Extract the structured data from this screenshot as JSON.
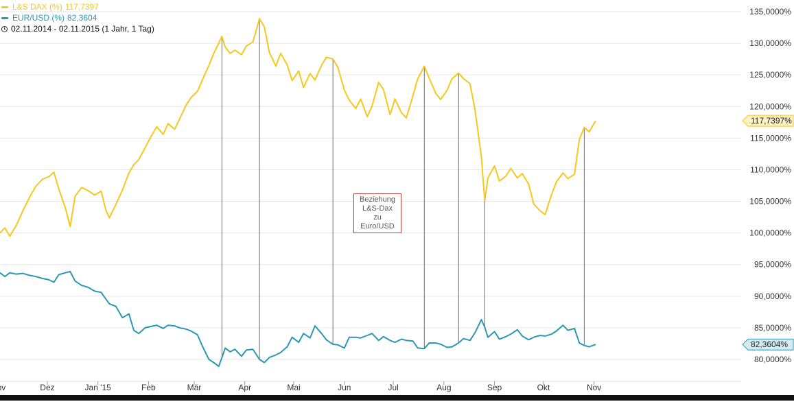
{
  "legend": {
    "series1_name": "L&S DAX (%)",
    "series1_value": "117,7397",
    "series2_name": "EUR/USD (%)",
    "series2_value": "82,3604",
    "period": "02.11.2014 - 02.11.2015 (1 Jahr, 1 Tag)"
  },
  "annotation": {
    "lines": [
      "Beziehung",
      "L&S-Dax",
      "zu",
      "Euro/USD"
    ]
  },
  "colors": {
    "dax": "#f5c81a",
    "eurusd": "#2a97b3",
    "grid": "#e6e6e6",
    "vline": "#6a6a6a",
    "annotation_border": "#c23b3b"
  },
  "chart_data": {
    "type": "line",
    "title": "",
    "xlabel": "",
    "ylabel": "",
    "x_range": [
      "2014-11-02",
      "2015-11-02"
    ],
    "ylim": [
      78,
      136
    ],
    "grid": true,
    "y_axis_position": "right",
    "y_ticks": [
      "135,0000%",
      "130,0000%",
      "125,0000%",
      "120,0000%",
      "115,0000%",
      "110,0000%",
      "105,0000%",
      "100,0000%",
      "95,0000%",
      "90,0000%",
      "85,0000%",
      "80,0000%"
    ],
    "y_tick_values": [
      135,
      130,
      125,
      120,
      115,
      110,
      105,
      100,
      95,
      90,
      85,
      80
    ],
    "x_ticks": [
      {
        "label": "Nov",
        "date": "2014-11-01"
      },
      {
        "label": "Dez",
        "date": "2014-12-01"
      },
      {
        "label": "Jan '15",
        "date": "2015-01-01"
      },
      {
        "label": "Feb",
        "date": "2015-02-01"
      },
      {
        "label": "Mär",
        "date": "2015-03-01"
      },
      {
        "label": "Apr",
        "date": "2015-04-01"
      },
      {
        "label": "Mai",
        "date": "2015-05-01"
      },
      {
        "label": "Jun",
        "date": "2015-06-01"
      },
      {
        "label": "Jul",
        "date": "2015-07-01"
      },
      {
        "label": "Aug",
        "date": "2015-08-01"
      },
      {
        "label": "Sep",
        "date": "2015-09-01"
      },
      {
        "label": "Okt",
        "date": "2015-10-01"
      },
      {
        "label": "Nov",
        "date": "2015-11-01"
      }
    ],
    "last_value_labels": [
      {
        "series": "L&S DAX (%)",
        "text": "117,7397%",
        "value": 117.74
      },
      {
        "series": "EUR/USD (%)",
        "text": "82,3604%",
        "value": 82.36
      }
    ],
    "series": [
      {
        "name": "L&S DAX (%)",
        "points": [
          [
            "2014-11-02",
            100.0
          ],
          [
            "2014-11-05",
            100.8
          ],
          [
            "2014-11-08",
            99.5
          ],
          [
            "2014-11-12",
            101.2
          ],
          [
            "2014-11-16",
            103.5
          ],
          [
            "2014-11-20",
            105.6
          ],
          [
            "2014-11-24",
            107.4
          ],
          [
            "2014-11-28",
            108.5
          ],
          [
            "2014-12-02",
            108.9
          ],
          [
            "2014-12-05",
            109.6
          ],
          [
            "2014-12-08",
            107.0
          ],
          [
            "2014-12-12",
            104.0
          ],
          [
            "2014-12-15",
            101.0
          ],
          [
            "2014-12-18",
            105.8
          ],
          [
            "2014-12-22",
            107.2
          ],
          [
            "2014-12-26",
            106.7
          ],
          [
            "2014-12-30",
            106.0
          ],
          [
            "2015-01-03",
            106.6
          ],
          [
            "2015-01-06",
            103.5
          ],
          [
            "2015-01-08",
            102.4
          ],
          [
            "2015-01-12",
            104.5
          ],
          [
            "2015-01-16",
            106.8
          ],
          [
            "2015-01-20",
            109.5
          ],
          [
            "2015-01-23",
            110.8
          ],
          [
            "2015-01-26",
            111.6
          ],
          [
            "2015-01-30",
            113.5
          ],
          [
            "2015-02-02",
            115.0
          ],
          [
            "2015-02-06",
            116.8
          ],
          [
            "2015-02-10",
            115.6
          ],
          [
            "2015-02-13",
            117.3
          ],
          [
            "2015-02-17",
            116.4
          ],
          [
            "2015-02-20",
            118.0
          ],
          [
            "2015-02-24",
            120.2
          ],
          [
            "2015-02-27",
            121.4
          ],
          [
            "2015-03-03",
            122.4
          ],
          [
            "2015-03-06",
            124.2
          ],
          [
            "2015-03-10",
            126.5
          ],
          [
            "2015-03-13",
            128.4
          ],
          [
            "2015-03-16",
            130.0
          ],
          [
            "2015-03-18",
            131.1
          ],
          [
            "2015-03-20",
            129.4
          ],
          [
            "2015-03-23",
            128.4
          ],
          [
            "2015-03-26",
            128.9
          ],
          [
            "2015-03-30",
            128.2
          ],
          [
            "2015-04-02",
            129.6
          ],
          [
            "2015-04-06",
            130.2
          ],
          [
            "2015-04-10",
            133.9
          ],
          [
            "2015-04-13",
            132.6
          ],
          [
            "2015-04-16",
            128.6
          ],
          [
            "2015-04-20",
            126.4
          ],
          [
            "2015-04-23",
            128.4
          ],
          [
            "2015-04-27",
            126.6
          ],
          [
            "2015-04-30",
            124.1
          ],
          [
            "2015-05-04",
            125.6
          ],
          [
            "2015-05-07",
            123.0
          ],
          [
            "2015-05-11",
            125.2
          ],
          [
            "2015-05-14",
            124.2
          ],
          [
            "2015-05-18",
            126.5
          ],
          [
            "2015-05-21",
            127.8
          ],
          [
            "2015-05-25",
            127.5
          ],
          [
            "2015-05-28",
            126.2
          ],
          [
            "2015-06-01",
            122.6
          ],
          [
            "2015-06-04",
            121.0
          ],
          [
            "2015-06-08",
            119.7
          ],
          [
            "2015-06-11",
            121.2
          ],
          [
            "2015-06-15",
            118.4
          ],
          [
            "2015-06-18",
            120.1
          ],
          [
            "2015-06-22",
            123.8
          ],
          [
            "2015-06-25",
            122.7
          ],
          [
            "2015-06-29",
            118.7
          ],
          [
            "2015-07-02",
            121.2
          ],
          [
            "2015-07-06",
            119.0
          ],
          [
            "2015-07-09",
            118.2
          ],
          [
            "2015-07-13",
            121.7
          ],
          [
            "2015-07-16",
            124.4
          ],
          [
            "2015-07-20",
            126.4
          ],
          [
            "2015-07-23",
            124.5
          ],
          [
            "2015-07-27",
            122.1
          ],
          [
            "2015-07-30",
            121.1
          ],
          [
            "2015-08-03",
            122.6
          ],
          [
            "2015-08-06",
            124.4
          ],
          [
            "2015-08-10",
            125.3
          ],
          [
            "2015-08-13",
            124.4
          ],
          [
            "2015-08-17",
            123.6
          ],
          [
            "2015-08-20",
            119.6
          ],
          [
            "2015-08-24",
            112.0
          ],
          [
            "2015-08-26",
            105.1
          ],
          [
            "2015-08-28",
            108.7
          ],
          [
            "2015-09-01",
            110.6
          ],
          [
            "2015-09-04",
            108.2
          ],
          [
            "2015-09-08",
            109.0
          ],
          [
            "2015-09-11",
            110.2
          ],
          [
            "2015-09-15",
            108.7
          ],
          [
            "2015-09-18",
            109.4
          ],
          [
            "2015-09-22",
            107.7
          ],
          [
            "2015-09-25",
            104.6
          ],
          [
            "2015-09-29",
            103.5
          ],
          [
            "2015-10-02",
            102.9
          ],
          [
            "2015-10-06",
            106.1
          ],
          [
            "2015-10-09",
            108.1
          ],
          [
            "2015-10-13",
            109.5
          ],
          [
            "2015-10-16",
            108.6
          ],
          [
            "2015-10-20",
            109.3
          ],
          [
            "2015-10-23",
            114.8
          ],
          [
            "2015-10-26",
            116.7
          ],
          [
            "2015-10-29",
            116.0
          ],
          [
            "2015-11-02",
            117.74
          ]
        ]
      },
      {
        "name": "EUR/USD (%)",
        "points": [
          [
            "2014-11-02",
            93.7
          ],
          [
            "2014-11-05",
            93.1
          ],
          [
            "2014-11-08",
            93.7
          ],
          [
            "2014-11-12",
            93.5
          ],
          [
            "2014-11-16",
            93.6
          ],
          [
            "2014-11-20",
            93.3
          ],
          [
            "2014-11-24",
            93.1
          ],
          [
            "2014-11-28",
            92.8
          ],
          [
            "2014-12-02",
            92.6
          ],
          [
            "2014-12-05",
            92.2
          ],
          [
            "2014-12-08",
            93.4
          ],
          [
            "2014-12-12",
            93.7
          ],
          [
            "2014-12-15",
            93.9
          ],
          [
            "2014-12-18",
            92.4
          ],
          [
            "2014-12-22",
            91.7
          ],
          [
            "2014-12-26",
            91.4
          ],
          [
            "2014-12-30",
            90.8
          ],
          [
            "2015-01-03",
            90.6
          ],
          [
            "2015-01-06",
            89.5
          ],
          [
            "2015-01-08",
            88.8
          ],
          [
            "2015-01-12",
            88.4
          ],
          [
            "2015-01-16",
            86.6
          ],
          [
            "2015-01-20",
            87.2
          ],
          [
            "2015-01-23",
            84.6
          ],
          [
            "2015-01-26",
            84.1
          ],
          [
            "2015-01-30",
            85.0
          ],
          [
            "2015-02-02",
            85.2
          ],
          [
            "2015-02-06",
            85.4
          ],
          [
            "2015-02-10",
            84.9
          ],
          [
            "2015-02-13",
            85.4
          ],
          [
            "2015-02-17",
            85.3
          ],
          [
            "2015-02-20",
            85.0
          ],
          [
            "2015-02-24",
            84.8
          ],
          [
            "2015-02-27",
            84.5
          ],
          [
            "2015-03-03",
            83.9
          ],
          [
            "2015-03-06",
            82.1
          ],
          [
            "2015-03-10",
            80.0
          ],
          [
            "2015-03-13",
            79.5
          ],
          [
            "2015-03-16",
            78.9
          ],
          [
            "2015-03-18",
            80.3
          ],
          [
            "2015-03-20",
            81.8
          ],
          [
            "2015-03-23",
            81.2
          ],
          [
            "2015-03-26",
            81.6
          ],
          [
            "2015-03-30",
            80.5
          ],
          [
            "2015-04-02",
            81.5
          ],
          [
            "2015-04-06",
            81.6
          ],
          [
            "2015-04-10",
            80.0
          ],
          [
            "2015-04-13",
            79.5
          ],
          [
            "2015-04-16",
            80.3
          ],
          [
            "2015-04-20",
            80.7
          ],
          [
            "2015-04-23",
            81.1
          ],
          [
            "2015-04-27",
            82.0
          ],
          [
            "2015-04-30",
            83.5
          ],
          [
            "2015-05-04",
            82.7
          ],
          [
            "2015-05-07",
            84.1
          ],
          [
            "2015-05-11",
            83.4
          ],
          [
            "2015-05-14",
            85.3
          ],
          [
            "2015-05-18",
            84.1
          ],
          [
            "2015-05-21",
            83.1
          ],
          [
            "2015-05-25",
            82.4
          ],
          [
            "2015-05-28",
            82.3
          ],
          [
            "2015-06-01",
            81.8
          ],
          [
            "2015-06-04",
            83.5
          ],
          [
            "2015-06-08",
            83.5
          ],
          [
            "2015-06-11",
            83.4
          ],
          [
            "2015-06-15",
            83.8
          ],
          [
            "2015-06-18",
            84.1
          ],
          [
            "2015-06-22",
            83.0
          ],
          [
            "2015-06-25",
            83.6
          ],
          [
            "2015-06-29",
            83.0
          ],
          [
            "2015-07-02",
            82.7
          ],
          [
            "2015-07-06",
            83.2
          ],
          [
            "2015-07-09",
            83.0
          ],
          [
            "2015-07-13",
            82.9
          ],
          [
            "2015-07-16",
            81.8
          ],
          [
            "2015-07-20",
            81.7
          ],
          [
            "2015-07-23",
            82.6
          ],
          [
            "2015-07-27",
            82.6
          ],
          [
            "2015-07-30",
            82.4
          ],
          [
            "2015-08-03",
            81.9
          ],
          [
            "2015-08-06",
            82.0
          ],
          [
            "2015-08-10",
            82.6
          ],
          [
            "2015-08-13",
            83.3
          ],
          [
            "2015-08-17",
            83.0
          ],
          [
            "2015-08-20",
            84.2
          ],
          [
            "2015-08-24",
            86.3
          ],
          [
            "2015-08-26",
            85.1
          ],
          [
            "2015-08-28",
            83.5
          ],
          [
            "2015-09-01",
            84.4
          ],
          [
            "2015-09-04",
            83.2
          ],
          [
            "2015-09-08",
            83.6
          ],
          [
            "2015-09-11",
            84.0
          ],
          [
            "2015-09-15",
            84.7
          ],
          [
            "2015-09-18",
            83.7
          ],
          [
            "2015-09-22",
            83.1
          ],
          [
            "2015-09-25",
            83.5
          ],
          [
            "2015-09-29",
            83.8
          ],
          [
            "2015-10-02",
            83.7
          ],
          [
            "2015-10-06",
            84.0
          ],
          [
            "2015-10-09",
            84.5
          ],
          [
            "2015-10-13",
            85.4
          ],
          [
            "2015-10-16",
            84.6
          ],
          [
            "2015-10-20",
            84.9
          ],
          [
            "2015-10-23",
            82.6
          ],
          [
            "2015-10-26",
            82.2
          ],
          [
            "2015-10-29",
            82.0
          ],
          [
            "2015-11-02",
            82.36
          ]
        ]
      }
    ],
    "vertical_markers": [
      "2015-03-18",
      "2015-04-10",
      "2015-05-25",
      "2015-07-20",
      "2015-08-10",
      "2015-08-26",
      "2015-10-26"
    ]
  }
}
